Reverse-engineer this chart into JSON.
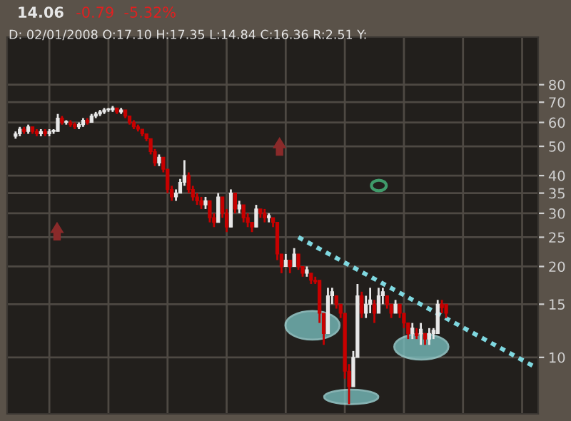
{
  "chart_data": {
    "type": "candlestick",
    "title": "14.06",
    "annotations": [
      "-0.79  -5.32%"
    ],
    "subtitle": "D: 02/01/2008 O:17.10 H:17.35 L:14.84 C:16.36 R:2.51 Y:",
    "categories": [
      null,
      null,
      null,
      null,
      null,
      null,
      null,
      null,
      null,
      null,
      null,
      null,
      null,
      null,
      null,
      null,
      null,
      null,
      null,
      null,
      null,
      null,
      null,
      null,
      null,
      null,
      null,
      null,
      null,
      null,
      null,
      null,
      null,
      null,
      null,
      null,
      null,
      null,
      null,
      null,
      null,
      null,
      null,
      null,
      null,
      null,
      null,
      null,
      null,
      null,
      null,
      null,
      null,
      null,
      null,
      null,
      null,
      null,
      null,
      null,
      null,
      null,
      null,
      null,
      null,
      null,
      null,
      null,
      null,
      null,
      null,
      null,
      null,
      null,
      null,
      null,
      null,
      null,
      null,
      null,
      null,
      null,
      null,
      null,
      null,
      null,
      null,
      null,
      null,
      null,
      null,
      null,
      null,
      null,
      null,
      null,
      null,
      null,
      null,
      null,
      null,
      null,
      null,
      null,
      null,
      null,
      null,
      null,
      null,
      null,
      null,
      null,
      null,
      null,
      null,
      null,
      null,
      null,
      null,
      null,
      null,
      null,
      null,
      null
    ],
    "ohlc": [
      [
        54,
        56,
        53,
        55
      ],
      [
        55,
        58,
        54,
        57
      ],
      [
        57,
        58,
        55,
        56
      ],
      [
        56,
        59,
        55,
        58
      ],
      [
        58,
        58,
        55,
        56
      ],
      [
        56,
        57,
        54,
        55
      ],
      [
        55,
        57,
        54,
        56
      ],
      [
        56,
        57,
        54,
        55
      ],
      [
        55,
        57,
        54,
        56
      ],
      [
        56,
        57,
        55,
        56.5
      ],
      [
        56,
        64,
        56,
        62
      ],
      [
        62,
        63,
        59,
        60
      ],
      [
        60,
        61,
        59,
        60.5
      ],
      [
        60,
        61,
        58,
        59
      ],
      [
        59,
        60,
        57,
        58
      ],
      [
        58,
        60,
        57,
        59
      ],
      [
        59,
        62,
        58,
        61
      ],
      [
        61,
        62,
        59,
        60
      ],
      [
        60,
        64,
        60,
        63
      ],
      [
        63,
        65,
        62,
        64
      ],
      [
        64,
        66,
        63,
        65
      ],
      [
        65,
        67,
        64,
        66
      ],
      [
        66,
        67,
        65,
        66.5
      ],
      [
        66,
        68,
        65,
        67
      ],
      [
        67,
        67,
        64,
        65
      ],
      [
        65,
        67,
        64,
        66
      ],
      [
        66,
        66,
        62,
        63
      ],
      [
        63,
        63,
        59,
        60
      ],
      [
        60,
        61,
        57,
        58
      ],
      [
        58,
        59,
        56,
        57
      ],
      [
        57,
        57,
        54,
        55
      ],
      [
        55,
        55,
        52,
        53
      ],
      [
        53,
        53,
        47,
        48
      ],
      [
        48,
        49,
        43,
        44
      ],
      [
        44,
        47,
        43,
        46
      ],
      [
        46,
        46,
        41,
        42
      ],
      [
        42,
        42,
        35,
        36
      ],
      [
        36,
        37,
        33,
        34
      ],
      [
        34,
        36,
        33,
        35
      ],
      [
        35,
        39,
        35,
        38
      ],
      [
        38,
        45,
        37,
        40
      ],
      [
        40,
        41,
        35,
        36
      ],
      [
        36,
        37,
        33,
        34
      ],
      [
        34,
        35,
        32,
        33
      ],
      [
        33,
        34,
        31,
        32
      ],
      [
        32,
        34,
        31,
        33
      ],
      [
        33,
        33,
        28,
        29
      ],
      [
        29,
        30,
        27,
        28
      ],
      [
        28,
        35,
        28,
        34
      ],
      [
        34,
        34,
        29,
        30
      ],
      [
        30,
        31,
        26,
        27
      ],
      [
        27,
        36,
        27,
        35
      ],
      [
        35,
        35,
        30,
        31
      ],
      [
        31,
        33,
        30,
        32
      ],
      [
        32,
        32,
        28,
        29
      ],
      [
        29,
        30,
        27,
        28
      ],
      [
        28,
        28,
        26,
        27
      ],
      [
        27,
        32,
        27,
        31
      ],
      [
        31,
        31,
        29,
        30
      ],
      [
        30,
        31,
        28,
        29
      ],
      [
        29,
        30,
        28,
        29.5
      ],
      [
        29,
        29,
        27,
        28
      ],
      [
        28,
        28,
        21,
        22
      ],
      [
        22,
        22,
        19,
        20
      ],
      [
        20,
        22,
        20,
        21
      ],
      [
        21,
        21,
        19,
        20
      ],
      [
        20,
        23,
        20,
        22
      ],
      [
        22,
        22,
        19.5,
        20
      ],
      [
        20,
        20,
        18.5,
        19
      ],
      [
        19,
        20,
        18.5,
        19.5
      ],
      [
        19,
        19,
        17.5,
        18
      ],
      [
        18,
        18.5,
        17.5,
        17.8
      ],
      [
        18,
        18,
        13,
        14
      ],
      [
        14,
        14,
        11,
        12
      ],
      [
        12,
        17,
        12,
        16
      ],
      [
        16,
        17,
        15,
        16.5
      ],
      [
        16,
        16,
        14.5,
        15
      ],
      [
        15,
        15,
        13.5,
        14
      ],
      [
        14,
        14,
        8.5,
        9
      ],
      [
        9,
        9.5,
        7,
        8
      ],
      [
        8,
        10.5,
        8,
        10
      ],
      [
        10,
        17.5,
        10,
        16
      ],
      [
        16,
        16.5,
        13.5,
        14
      ],
      [
        14,
        16,
        13.5,
        15
      ],
      [
        15,
        17,
        14,
        15.5
      ],
      [
        15,
        15.5,
        13,
        14
      ],
      [
        14,
        17,
        14,
        16
      ],
      [
        16,
        17,
        15,
        16.5
      ],
      [
        16,
        16,
        14.5,
        15
      ],
      [
        15,
        15,
        13.5,
        14
      ],
      [
        14,
        15.5,
        14,
        15
      ],
      [
        15,
        15,
        13.5,
        14
      ],
      [
        14,
        14,
        12.5,
        13
      ],
      [
        13,
        13,
        11.5,
        12
      ],
      [
        12,
        13,
        11.5,
        12.5
      ],
      [
        12,
        12.5,
        11.5,
        11.8
      ],
      [
        12,
        13,
        11,
        12.4
      ],
      [
        12,
        12,
        11,
        11.5
      ],
      [
        11.5,
        12.5,
        11,
        12
      ],
      [
        12,
        12.5,
        11.5,
        12.3
      ],
      [
        12,
        15.5,
        12,
        15
      ],
      [
        15,
        15.5,
        14,
        14.6
      ],
      [
        15,
        15,
        13.5,
        14
      ],
      null,
      null,
      null,
      null,
      null,
      null,
      null,
      null,
      null,
      null,
      null,
      null,
      null,
      null,
      null,
      null,
      null,
      null,
      null,
      null,
      null
    ],
    "series": [
      {
        "type": "line",
        "values": [
          null,
          null,
          null,
          null,
          null,
          null,
          null,
          null,
          null,
          null,
          null,
          null,
          null,
          null,
          null,
          null,
          null,
          null,
          null,
          null,
          null,
          null,
          null,
          null,
          null,
          null,
          null,
          null,
          null,
          null,
          null,
          null,
          null,
          null,
          null,
          null,
          null,
          null,
          null,
          null,
          null,
          null,
          null,
          null,
          null,
          null,
          null,
          null,
          null,
          null,
          null,
          null,
          null,
          null,
          null,
          null,
          null,
          null,
          null,
          null,
          null,
          null,
          null,
          null,
          null,
          null,
          null,
          25.0,
          null,
          null,
          null,
          null,
          null,
          null,
          null,
          null,
          null,
          null,
          null,
          null,
          null,
          null,
          null,
          null,
          null,
          null,
          null,
          null,
          null,
          null,
          null,
          null,
          null,
          null,
          null,
          null,
          null,
          null,
          null,
          null,
          null,
          null,
          null,
          null,
          null,
          null,
          null,
          null,
          null,
          null,
          null,
          null,
          null,
          null,
          null,
          null,
          null,
          null,
          null,
          null,
          null,
          null,
          null,
          9.3
        ],
        "color": "#7fd8e0",
        "line_style": "dotted"
      }
    ],
    "log": true,
    "ylim": [
      6.5,
      115
    ],
    "yticks": [
      10,
      15,
      20,
      25,
      30,
      35,
      40,
      50,
      60,
      70,
      80
    ],
    "grid": true
  }
}
